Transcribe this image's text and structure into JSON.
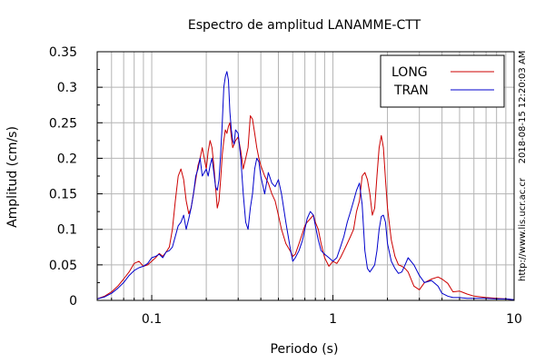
{
  "chart_data": {
    "type": "line",
    "title": "Espectro de amplitud LANAMME-CTT",
    "xlabel": "Periodo (s)",
    "ylabel": "Amplitud (cm/s)",
    "x_scale": "log",
    "xlim": [
      0.05,
      10
    ],
    "ylim": [
      0,
      0.35
    ],
    "grid": true,
    "legend_position": "top-right",
    "x_ticks": [
      0.1,
      1,
      10
    ],
    "x_tick_labels": [
      "0.1",
      "1",
      "10"
    ],
    "y_ticks": [
      0,
      0.05,
      0.1,
      0.15,
      0.2,
      0.25,
      0.3,
      0.35
    ],
    "y_tick_labels": [
      "0",
      "0.05",
      "0.1",
      "0.15",
      "0.2",
      "0.25",
      "0.3",
      "0.35"
    ],
    "side_texts": [
      "2018-08-15 12:20:03 AM",
      "http://www.lis.ucr.ac.cr"
    ],
    "series": [
      {
        "name": "LONG",
        "color": "#cc0000",
        "points": [
          [
            0.05,
            0.002
          ],
          [
            0.055,
            0.006
          ],
          [
            0.06,
            0.012
          ],
          [
            0.065,
            0.02
          ],
          [
            0.07,
            0.03
          ],
          [
            0.075,
            0.04
          ],
          [
            0.08,
            0.052
          ],
          [
            0.085,
            0.055
          ],
          [
            0.09,
            0.048
          ],
          [
            0.095,
            0.05
          ],
          [
            0.1,
            0.055
          ],
          [
            0.105,
            0.06
          ],
          [
            0.11,
            0.066
          ],
          [
            0.115,
            0.062
          ],
          [
            0.12,
            0.068
          ],
          [
            0.125,
            0.075
          ],
          [
            0.13,
            0.1
          ],
          [
            0.135,
            0.14
          ],
          [
            0.14,
            0.175
          ],
          [
            0.145,
            0.185
          ],
          [
            0.15,
            0.17
          ],
          [
            0.155,
            0.14
          ],
          [
            0.16,
            0.122
          ],
          [
            0.165,
            0.13
          ],
          [
            0.17,
            0.15
          ],
          [
            0.175,
            0.17
          ],
          [
            0.18,
            0.19
          ],
          [
            0.185,
            0.2
          ],
          [
            0.19,
            0.215
          ],
          [
            0.195,
            0.2
          ],
          [
            0.2,
            0.185
          ],
          [
            0.205,
            0.21
          ],
          [
            0.21,
            0.225
          ],
          [
            0.215,
            0.215
          ],
          [
            0.22,
            0.19
          ],
          [
            0.225,
            0.16
          ],
          [
            0.23,
            0.13
          ],
          [
            0.235,
            0.14
          ],
          [
            0.24,
            0.17
          ],
          [
            0.245,
            0.205
          ],
          [
            0.25,
            0.225
          ],
          [
            0.255,
            0.24
          ],
          [
            0.26,
            0.235
          ],
          [
            0.265,
            0.245
          ],
          [
            0.27,
            0.25
          ],
          [
            0.275,
            0.23
          ],
          [
            0.28,
            0.215
          ],
          [
            0.285,
            0.22
          ],
          [
            0.29,
            0.225
          ],
          [
            0.3,
            0.23
          ],
          [
            0.31,
            0.21
          ],
          [
            0.32,
            0.185
          ],
          [
            0.33,
            0.2
          ],
          [
            0.34,
            0.215
          ],
          [
            0.35,
            0.26
          ],
          [
            0.36,
            0.255
          ],
          [
            0.37,
            0.235
          ],
          [
            0.38,
            0.215
          ],
          [
            0.39,
            0.2
          ],
          [
            0.4,
            0.19
          ],
          [
            0.42,
            0.175
          ],
          [
            0.44,
            0.165
          ],
          [
            0.46,
            0.15
          ],
          [
            0.48,
            0.14
          ],
          [
            0.5,
            0.12
          ],
          [
            0.52,
            0.1
          ],
          [
            0.55,
            0.08
          ],
          [
            0.58,
            0.07
          ],
          [
            0.6,
            0.062
          ],
          [
            0.62,
            0.065
          ],
          [
            0.65,
            0.08
          ],
          [
            0.68,
            0.095
          ],
          [
            0.7,
            0.105
          ],
          [
            0.72,
            0.11
          ],
          [
            0.75,
            0.115
          ],
          [
            0.78,
            0.12
          ],
          [
            0.8,
            0.11
          ],
          [
            0.83,
            0.1
          ],
          [
            0.86,
            0.08
          ],
          [
            0.9,
            0.06
          ],
          [
            0.95,
            0.048
          ],
          [
            1.0,
            0.055
          ],
          [
            1.05,
            0.052
          ],
          [
            1.1,
            0.06
          ],
          [
            1.15,
            0.07
          ],
          [
            1.2,
            0.08
          ],
          [
            1.25,
            0.09
          ],
          [
            1.3,
            0.1
          ],
          [
            1.35,
            0.125
          ],
          [
            1.4,
            0.14
          ],
          [
            1.45,
            0.175
          ],
          [
            1.5,
            0.18
          ],
          [
            1.55,
            0.17
          ],
          [
            1.6,
            0.15
          ],
          [
            1.65,
            0.12
          ],
          [
            1.7,
            0.13
          ],
          [
            1.75,
            0.175
          ],
          [
            1.8,
            0.215
          ],
          [
            1.85,
            0.232
          ],
          [
            1.9,
            0.215
          ],
          [
            1.95,
            0.17
          ],
          [
            2.0,
            0.13
          ],
          [
            2.1,
            0.085
          ],
          [
            2.2,
            0.062
          ],
          [
            2.3,
            0.05
          ],
          [
            2.4,
            0.048
          ],
          [
            2.5,
            0.045
          ],
          [
            2.6,
            0.04
          ],
          [
            2.8,
            0.02
          ],
          [
            3.0,
            0.015
          ],
          [
            3.2,
            0.025
          ],
          [
            3.5,
            0.03
          ],
          [
            3.8,
            0.033
          ],
          [
            4.0,
            0.03
          ],
          [
            4.3,
            0.024
          ],
          [
            4.6,
            0.012
          ],
          [
            5.0,
            0.013
          ],
          [
            5.5,
            0.009
          ],
          [
            6.0,
            0.006
          ],
          [
            7.0,
            0.004
          ],
          [
            8.0,
            0.003
          ],
          [
            9.0,
            0.002
          ],
          [
            10.0,
            0.001
          ]
        ]
      },
      {
        "name": "TRAN",
        "color": "#0000cc",
        "points": [
          [
            0.05,
            0.002
          ],
          [
            0.055,
            0.005
          ],
          [
            0.06,
            0.01
          ],
          [
            0.065,
            0.017
          ],
          [
            0.07,
            0.025
          ],
          [
            0.075,
            0.035
          ],
          [
            0.08,
            0.042
          ],
          [
            0.085,
            0.046
          ],
          [
            0.09,
            0.048
          ],
          [
            0.095,
            0.052
          ],
          [
            0.1,
            0.06
          ],
          [
            0.105,
            0.062
          ],
          [
            0.11,
            0.065
          ],
          [
            0.115,
            0.06
          ],
          [
            0.12,
            0.068
          ],
          [
            0.125,
            0.07
          ],
          [
            0.13,
            0.075
          ],
          [
            0.135,
            0.09
          ],
          [
            0.14,
            0.105
          ],
          [
            0.145,
            0.11
          ],
          [
            0.15,
            0.12
          ],
          [
            0.155,
            0.1
          ],
          [
            0.16,
            0.115
          ],
          [
            0.165,
            0.13
          ],
          [
            0.17,
            0.15
          ],
          [
            0.175,
            0.175
          ],
          [
            0.18,
            0.185
          ],
          [
            0.185,
            0.2
          ],
          [
            0.19,
            0.175
          ],
          [
            0.195,
            0.18
          ],
          [
            0.2,
            0.185
          ],
          [
            0.205,
            0.175
          ],
          [
            0.21,
            0.19
          ],
          [
            0.215,
            0.2
          ],
          [
            0.22,
            0.18
          ],
          [
            0.225,
            0.16
          ],
          [
            0.23,
            0.155
          ],
          [
            0.235,
            0.17
          ],
          [
            0.24,
            0.205
          ],
          [
            0.245,
            0.25
          ],
          [
            0.25,
            0.3
          ],
          [
            0.255,
            0.315
          ],
          [
            0.26,
            0.322
          ],
          [
            0.265,
            0.31
          ],
          [
            0.27,
            0.265
          ],
          [
            0.275,
            0.24
          ],
          [
            0.28,
            0.225
          ],
          [
            0.285,
            0.22
          ],
          [
            0.29,
            0.24
          ],
          [
            0.3,
            0.235
          ],
          [
            0.31,
            0.2
          ],
          [
            0.32,
            0.15
          ],
          [
            0.33,
            0.11
          ],
          [
            0.34,
            0.1
          ],
          [
            0.35,
            0.13
          ],
          [
            0.36,
            0.15
          ],
          [
            0.37,
            0.185
          ],
          [
            0.38,
            0.2
          ],
          [
            0.39,
            0.195
          ],
          [
            0.4,
            0.175
          ],
          [
            0.42,
            0.15
          ],
          [
            0.44,
            0.18
          ],
          [
            0.46,
            0.165
          ],
          [
            0.48,
            0.16
          ],
          [
            0.5,
            0.17
          ],
          [
            0.52,
            0.15
          ],
          [
            0.55,
            0.11
          ],
          [
            0.58,
            0.075
          ],
          [
            0.6,
            0.055
          ],
          [
            0.62,
            0.06
          ],
          [
            0.65,
            0.07
          ],
          [
            0.68,
            0.085
          ],
          [
            0.7,
            0.1
          ],
          [
            0.72,
            0.115
          ],
          [
            0.75,
            0.125
          ],
          [
            0.78,
            0.12
          ],
          [
            0.8,
            0.105
          ],
          [
            0.83,
            0.085
          ],
          [
            0.86,
            0.07
          ],
          [
            0.9,
            0.065
          ],
          [
            0.95,
            0.06
          ],
          [
            1.0,
            0.055
          ],
          [
            1.05,
            0.06
          ],
          [
            1.1,
            0.075
          ],
          [
            1.15,
            0.09
          ],
          [
            1.2,
            0.11
          ],
          [
            1.25,
            0.125
          ],
          [
            1.3,
            0.14
          ],
          [
            1.35,
            0.155
          ],
          [
            1.4,
            0.165
          ],
          [
            1.45,
            0.135
          ],
          [
            1.5,
            0.07
          ],
          [
            1.55,
            0.045
          ],
          [
            1.6,
            0.04
          ],
          [
            1.65,
            0.045
          ],
          [
            1.7,
            0.05
          ],
          [
            1.75,
            0.07
          ],
          [
            1.8,
            0.1
          ],
          [
            1.85,
            0.118
          ],
          [
            1.9,
            0.12
          ],
          [
            1.95,
            0.11
          ],
          [
            2.0,
            0.08
          ],
          [
            2.1,
            0.055
          ],
          [
            2.2,
            0.045
          ],
          [
            2.3,
            0.038
          ],
          [
            2.4,
            0.04
          ],
          [
            2.5,
            0.05
          ],
          [
            2.6,
            0.06
          ],
          [
            2.8,
            0.05
          ],
          [
            3.0,
            0.035
          ],
          [
            3.2,
            0.025
          ],
          [
            3.5,
            0.028
          ],
          [
            3.8,
            0.02
          ],
          [
            4.0,
            0.01
          ],
          [
            4.3,
            0.006
          ],
          [
            4.6,
            0.004
          ],
          [
            5.0,
            0.004
          ],
          [
            5.5,
            0.003
          ],
          [
            6.0,
            0.003
          ],
          [
            7.0,
            0.003
          ],
          [
            8.0,
            0.002
          ],
          [
            9.0,
            0.002
          ],
          [
            10.0,
            0.001
          ]
        ]
      }
    ]
  }
}
